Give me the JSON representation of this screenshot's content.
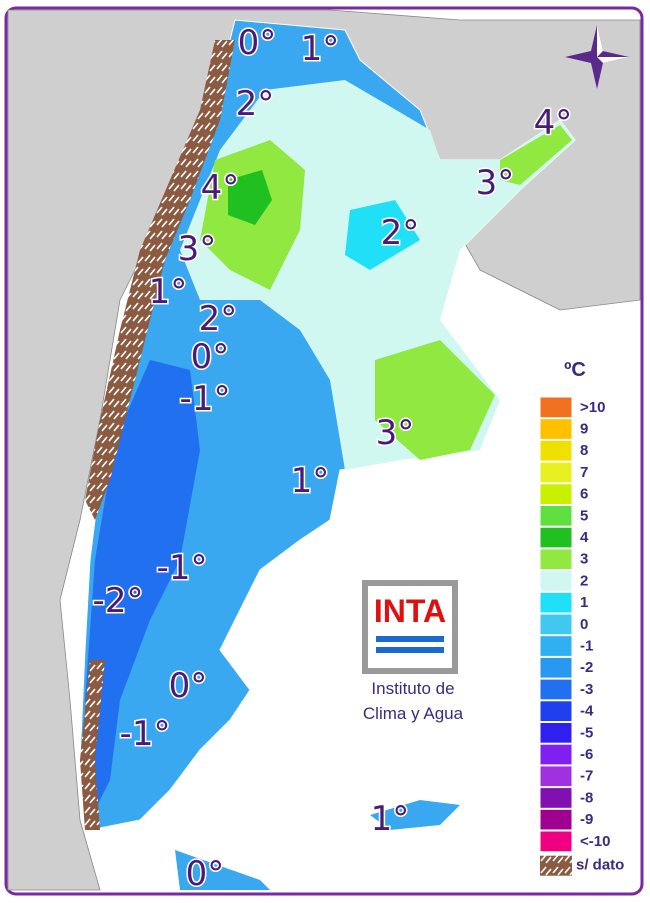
{
  "map": {
    "isotherm_labels": [
      "0°",
      "1°",
      "2°",
      "4°",
      "3°",
      "4°",
      "2°",
      "3°",
      "1°",
      "2°",
      "0°",
      "-1°",
      "3°",
      "1°",
      "-1°",
      "-2°",
      "0°",
      "-1°",
      "1°",
      "0°"
    ]
  },
  "legend": {
    "unit": "ºC",
    "items": [
      {
        "label": ">10",
        "color": "#f07020"
      },
      {
        "label": "9",
        "color": "#ffc000"
      },
      {
        "label": "8",
        "color": "#f0e000"
      },
      {
        "label": "7",
        "color": "#e8f020"
      },
      {
        "label": "6",
        "color": "#c8f000"
      },
      {
        "label": "5",
        "color": "#60e040"
      },
      {
        "label": "4",
        "color": "#20c020"
      },
      {
        "label": "3",
        "color": "#90e840"
      },
      {
        "label": "2",
        "color": "#d0f8f0"
      },
      {
        "label": "1",
        "color": "#20e0f8"
      },
      {
        "label": "0",
        "color": "#40c8f0"
      },
      {
        "label": "-1",
        "color": "#30b0f0"
      },
      {
        "label": "-2",
        "color": "#2898f0"
      },
      {
        "label": "-3",
        "color": "#2070f0"
      },
      {
        "label": "-4",
        "color": "#2040f0"
      },
      {
        "label": "-5",
        "color": "#3020f0"
      },
      {
        "label": "-6",
        "color": "#8020f0"
      },
      {
        "label": "-7",
        "color": "#a030e0"
      },
      {
        "label": "-8",
        "color": "#8010b0"
      },
      {
        "label": "-9",
        "color": "#a00090"
      },
      {
        "label": "<-10",
        "color": "#f00080"
      }
    ],
    "no_data": "s/ dato"
  },
  "logo": {
    "name": "INTA",
    "caption": [
      "Instituto de",
      "Clima y Agua"
    ]
  }
}
